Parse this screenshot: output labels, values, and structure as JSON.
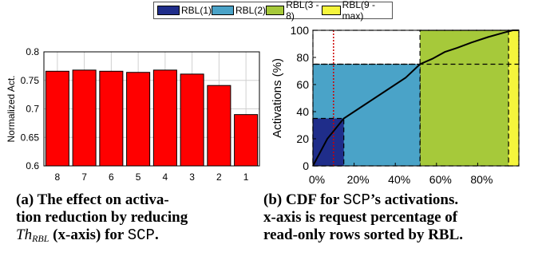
{
  "legend": {
    "items": [
      {
        "label": "RBL(1)",
        "color": "#1f2d8a"
      },
      {
        "label": "RBL(2)",
        "color": "#4aa3c8"
      },
      {
        "label": "RBL(3 - 8)",
        "color": "#a6c93a"
      },
      {
        "label": "RBL(9 - max)",
        "color": "#f5f53c"
      }
    ]
  },
  "chart_data": [
    {
      "type": "bar",
      "ylabel": "Normalized Act.",
      "xlabel": "",
      "categories": [
        "8",
        "7",
        "6",
        "5",
        "4",
        "3",
        "2",
        "1"
      ],
      "values": [
        0.766,
        0.768,
        0.766,
        0.764,
        0.768,
        0.761,
        0.741,
        0.69
      ],
      "ylim": [
        0.6,
        0.8
      ],
      "yticks": [
        "0.6",
        "0.65",
        "0.7",
        "0.75",
        "0.8"
      ],
      "bar_color": "#ff0000",
      "grid": true
    },
    {
      "type": "area",
      "ylabel": "Activations (%)",
      "xlabel": "",
      "xlim": [
        0,
        100
      ],
      "ylim": [
        0,
        100
      ],
      "xticks": [
        "0%",
        "20%",
        "40%",
        "60%",
        "80%"
      ],
      "yticks": [
        "0",
        "20",
        "40",
        "60",
        "80",
        "100"
      ],
      "regions": [
        {
          "x": [
            0,
            15
          ],
          "y": [
            0,
            35
          ],
          "color": "#1f2d8a"
        },
        {
          "x": [
            0,
            52
          ],
          "y": [
            0,
            75
          ],
          "color": "#4aa3c8"
        },
        {
          "x": [
            52,
            95
          ],
          "y": [
            0,
            100
          ],
          "color": "#a6c93a"
        },
        {
          "x": [
            95,
            100
          ],
          "y": [
            0,
            100
          ],
          "color": "#f5f53c"
        }
      ],
      "region_outline": {
        "x": [
          0,
          100
        ],
        "y": [
          75,
          100
        ]
      },
      "cdf_x": [
        0,
        7,
        15,
        25,
        35,
        45,
        52,
        58,
        64,
        70,
        77,
        85,
        92,
        97,
        100
      ],
      "cdf_y": [
        0,
        20,
        35,
        45,
        55,
        65,
        75,
        79,
        84,
        87,
        91,
        95,
        98,
        100,
        100
      ],
      "marker_x": 10,
      "marker_color": "#cc0000"
    }
  ],
  "captions": {
    "a": {
      "tag": "(a)",
      "l1": "The effect on activa-",
      "l2": "tion reduction by reducing",
      "th": "Th",
      "sub": "RBL",
      "l3_tail": " (x-axis) for ",
      "code": "SCP",
      "end": "."
    },
    "b": {
      "tag": "(b)",
      "l1a": "CDF for ",
      "code": "SCP",
      "l1b": "’s activations.",
      "l2": "x-axis is request percentage of",
      "l3": "read-only rows sorted by RBL."
    }
  }
}
